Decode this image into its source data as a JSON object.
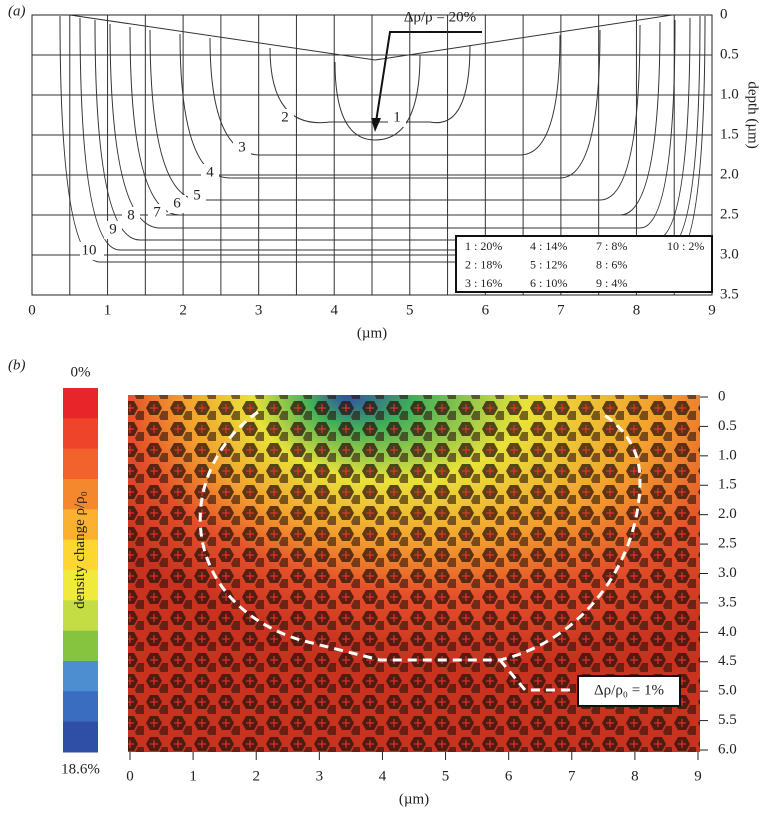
{
  "chart_data": [
    {
      "type": "contour",
      "panel_label": "(a)",
      "xlabel": "(µm)",
      "ylabel": "depth (µm)",
      "xlim": [
        0,
        9
      ],
      "xticks": [
        0,
        1,
        2,
        3,
        4,
        5,
        6,
        7,
        8,
        9
      ],
      "ylim": [
        0,
        3.5
      ],
      "y_inverted": true,
      "yticks": [
        0,
        0.5,
        {
          "value": 1,
          "label": "1.0"
        },
        1.5,
        {
          "value": 2,
          "label": "2.0"
        },
        2.5,
        {
          "value": 3,
          "label": "3.0"
        },
        3.5
      ],
      "grid": true,
      "annotation": "Δρ/ρ = 20%",
      "contour_labels": [
        "1",
        "2",
        "3",
        "4",
        "5",
        "6",
        "7",
        "8",
        "9",
        "10"
      ],
      "legend": [
        "1 : 20%",
        "2 : 18%",
        "3 : 16%",
        "4 : 14%",
        "5 : 12%",
        "6 : 10%",
        "7 : 8%",
        "8 : 6%",
        "9 : 4%",
        "10 : 2%"
      ]
    },
    {
      "type": "image",
      "panel_label": "(b)",
      "xlabel": "(µm)",
      "xlim": [
        0,
        9
      ],
      "xticks": [
        0,
        1,
        2,
        3,
        4,
        5,
        6,
        7,
        8,
        9
      ],
      "ylim": [
        0,
        6
      ],
      "y_inverted": true,
      "yticks": [
        0,
        0.5,
        {
          "value": 1,
          "label": "1.0"
        },
        1.5,
        {
          "value": 2,
          "label": "2.0"
        },
        2.5,
        {
          "value": 3,
          "label": "3.0"
        },
        3.5,
        {
          "value": 4,
          "label": "4.0"
        },
        4.5,
        {
          "value": 5,
          "label": "5.0"
        },
        5.5,
        {
          "value": 6,
          "label": "6.0"
        }
      ],
      "annotation": "Δρ/ρ₀ = 1%",
      "colorbar_label": "density change ρ/ρ₀",
      "clim": [
        0,
        18.6
      ],
      "cticks": [
        {
          "value": 0,
          "label": "0%"
        },
        {
          "value": 18.6,
          "label": "18.6%"
        }
      ],
      "colormap": [
        "#e8262a",
        "#ee4429",
        "#f1632a",
        "#f5872d",
        "#fbb02f",
        "#fdd632",
        "#efea3b",
        "#c4dd45",
        "#86c440",
        "#4c8ecf",
        "#3a6cbf",
        "#2f4fa6"
      ]
    }
  ]
}
